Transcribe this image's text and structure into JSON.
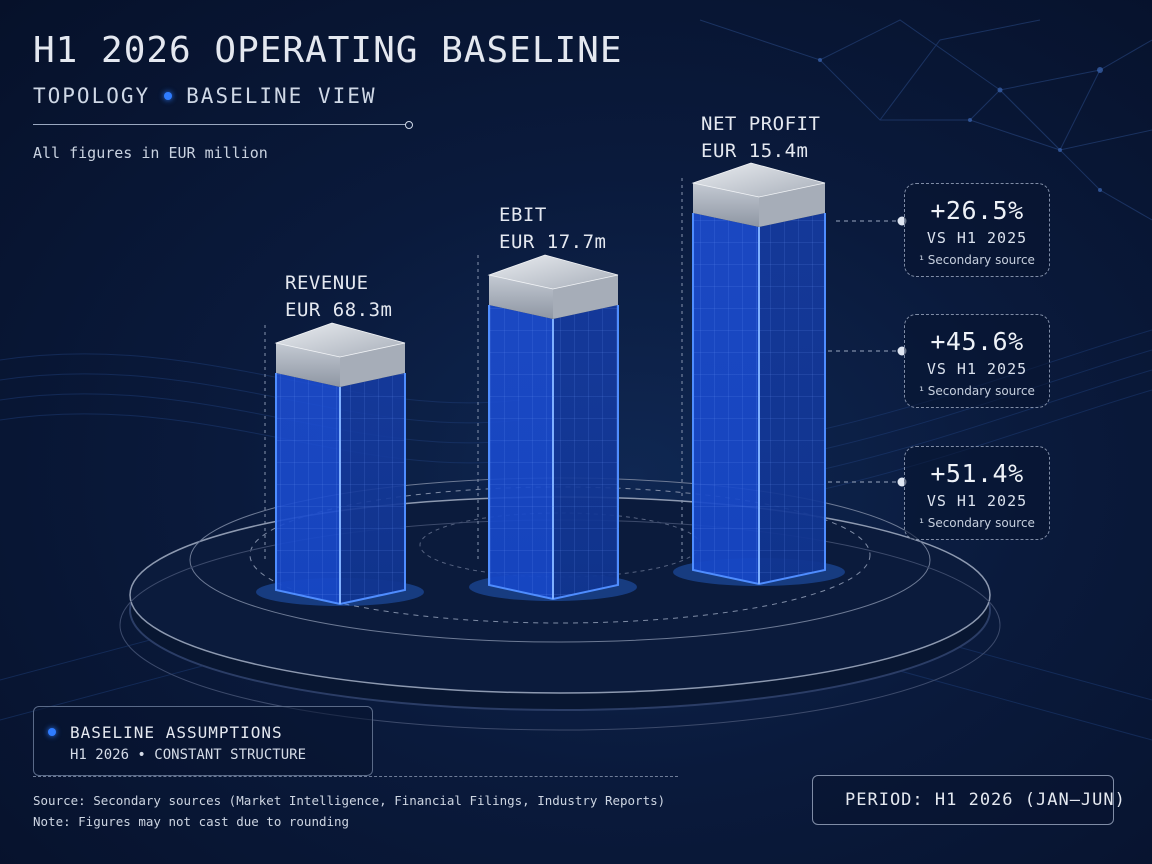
{
  "header": {
    "title": "H1 2026 OPERATING BASELINE",
    "subtitle_left": "TOPOLOGY",
    "subtitle_right": "BASELINE VIEW",
    "units_note": "All figures in EUR million"
  },
  "chart_data": {
    "type": "bar",
    "categories": [
      "REVENUE",
      "EBIT",
      "NET PROFIT"
    ],
    "values": [
      68.3,
      17.7,
      15.4
    ],
    "value_labels": [
      "EUR 68.3m",
      "EUR 17.7m",
      "EUR 15.4m"
    ],
    "unit": "EUR million",
    "growth_callouts": [
      {
        "value": "+26.5%",
        "comparison": "VS H1 2025",
        "source": "¹ Secondary source"
      },
      {
        "value": "+45.6%",
        "comparison": "VS H1 2025",
        "source": "¹ Secondary source"
      },
      {
        "value": "+51.4%",
        "comparison": "VS H1 2025",
        "source": "¹ Secondary source"
      }
    ],
    "style": "3d-columns-on-platform",
    "accent_color": "#2f7cff"
  },
  "assumptions": {
    "heading": "BASELINE ASSUMPTIONS",
    "detail": "H1 2026 • CONSTANT STRUCTURE"
  },
  "footer": {
    "source": "Source: Secondary sources (Market Intelligence, Financial Filings, Industry Reports)",
    "note": "Note: Figures may not cast due to rounding"
  },
  "period_badge": {
    "label": "PERIOD: H1 2026 (JAN–JUN)"
  },
  "colors": {
    "background": "#0a1a3c",
    "bar_blue": "#1c4fd6",
    "bar_cap": "#c9ced6",
    "text": "#e4e8f0"
  }
}
